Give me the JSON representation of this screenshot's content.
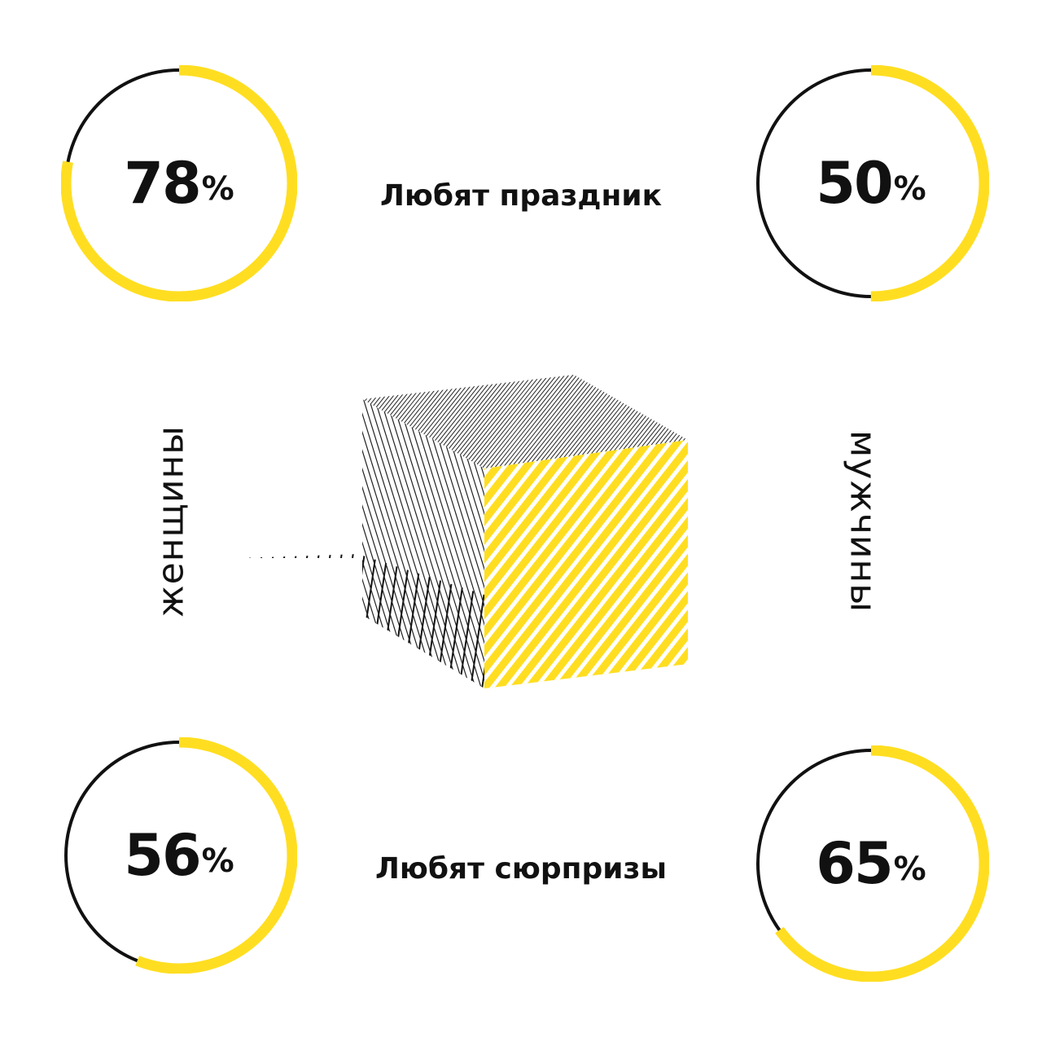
{
  "colors": {
    "accent": "#FFDE21",
    "ink": "#111111",
    "background": "#FFFFFF"
  },
  "labels": {
    "left_vertical": "женщины",
    "right_vertical": "мужчины",
    "row1": "Любят праздник",
    "row2": "Любят сюрпризы"
  },
  "chart_data": {
    "type": "pie",
    "title": "",
    "series_groups": [
      "женщины",
      "мужчины"
    ],
    "categories": [
      "Любят праздник",
      "Любят сюрпризы"
    ],
    "series": [
      {
        "name": "женщины",
        "values": [
          78,
          56
        ]
      },
      {
        "name": "мужчины",
        "values": [
          50,
          65
        ]
      }
    ],
    "unit": "%",
    "gauges": [
      {
        "group": "женщины",
        "category": "Любят праздник",
        "value": 78,
        "value_label": "78",
        "unit_label": "%"
      },
      {
        "group": "мужчины",
        "category": "Любят праздник",
        "value": 50,
        "value_label": "50",
        "unit_label": "%"
      },
      {
        "group": "женщины",
        "category": "Любят сюрпризы",
        "value": 56,
        "value_label": "56",
        "unit_label": "%"
      },
      {
        "group": "мужчины",
        "category": "Любят сюрпризы",
        "value": 65,
        "value_label": "65",
        "unit_label": "%"
      }
    ]
  }
}
